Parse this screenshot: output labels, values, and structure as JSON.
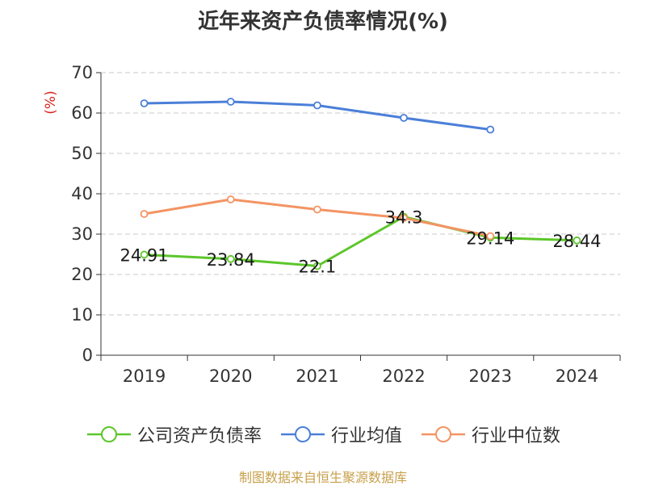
{
  "chart_data": {
    "type": "line",
    "title": "近年来资产负债率情况(%)",
    "ylabel": "(%)",
    "xlabel": "",
    "categories": [
      "2019",
      "2020",
      "2021",
      "2022",
      "2023",
      "2024"
    ],
    "ylim": [
      0,
      70
    ],
    "yticks": [
      0,
      10,
      20,
      30,
      40,
      50,
      60,
      70
    ],
    "grid": true,
    "legend_position": "bottom",
    "series": [
      {
        "name": "公司资产负债率",
        "color": "#5cc62a",
        "values": [
          24.91,
          23.84,
          22.1,
          34.3,
          29.14,
          28.44
        ],
        "labels": [
          "24.91",
          "23.84",
          "22.1",
          "34.3",
          "29.14",
          "28.44"
        ]
      },
      {
        "name": "行业均值",
        "color": "#4b7fd8",
        "values": [
          62.4,
          62.8,
          61.9,
          58.8,
          55.9,
          null
        ],
        "labels": null
      },
      {
        "name": "行业中位数",
        "color": "#f39463",
        "values": [
          35.0,
          38.6,
          36.1,
          34.0,
          29.5,
          null
        ],
        "labels": null
      }
    ]
  },
  "source_note": "制图数据来自恒生聚源数据库"
}
